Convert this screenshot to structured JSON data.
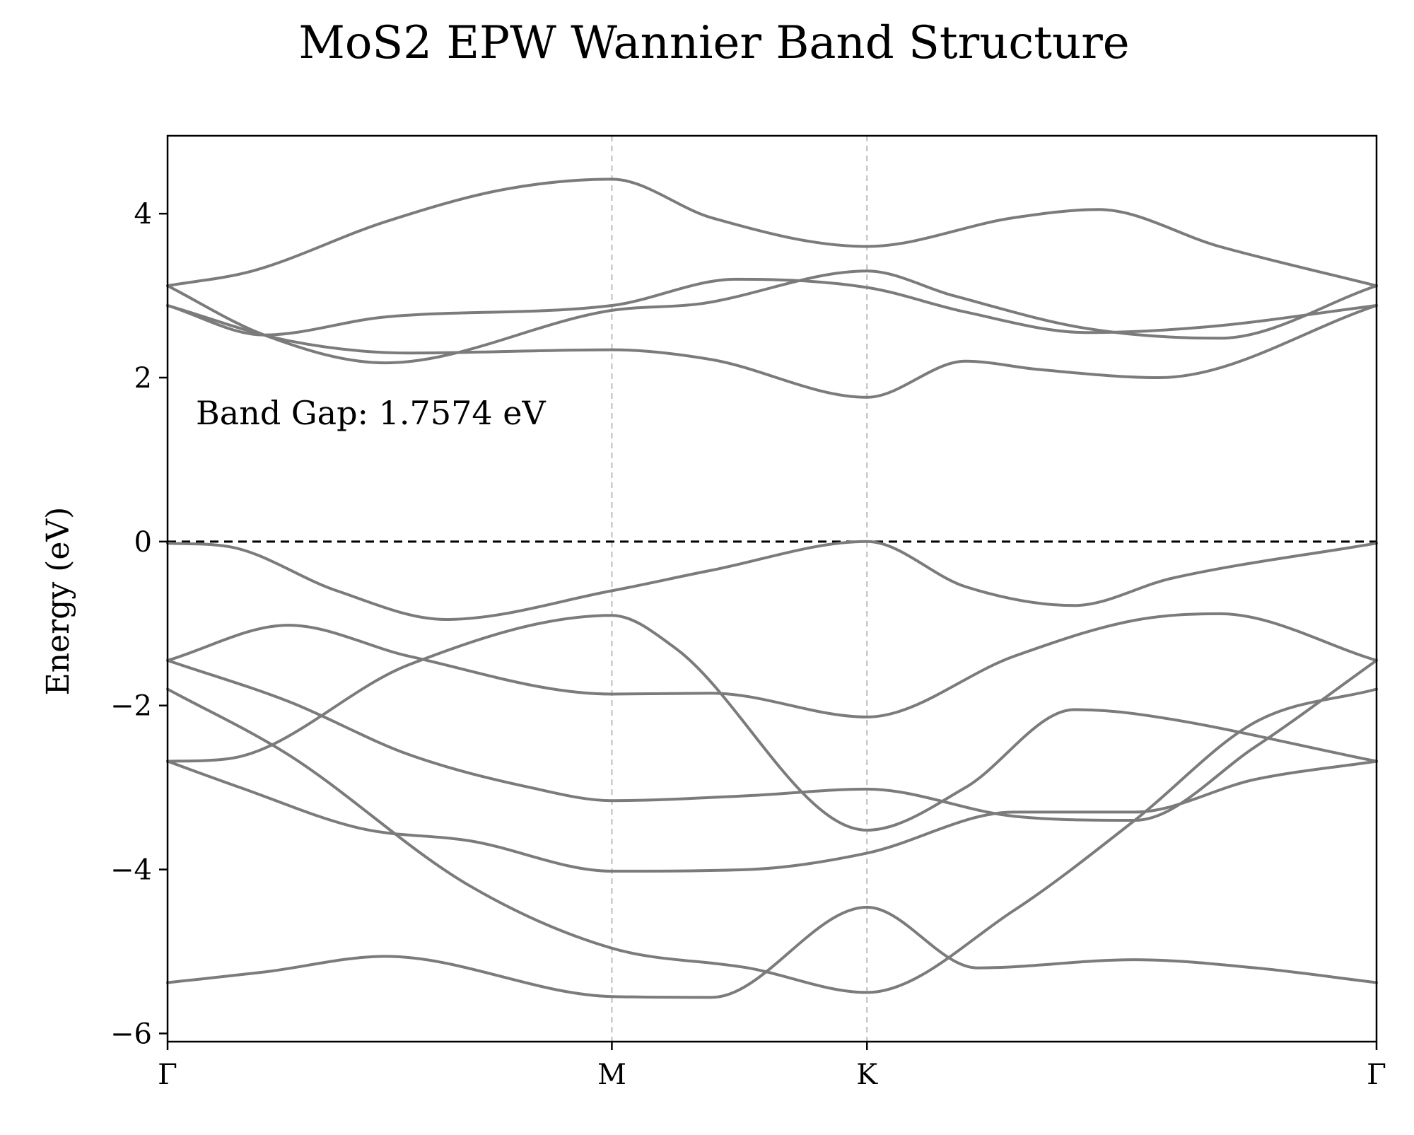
{
  "chart_data": {
    "type": "line",
    "title": "MoS2 EPW Wannier Band Structure",
    "xlabel": "",
    "ylabel": "Energy (eV)",
    "ylim": [
      -6.1,
      4.95
    ],
    "xlim": [
      0,
      1
    ],
    "x_ticks": [
      {
        "label": "Γ",
        "value": 0
      },
      {
        "label": "M",
        "value": 0.3675
      },
      {
        "label": "K",
        "value": 0.5785
      },
      {
        "label": "Γ",
        "value": 1
      }
    ],
    "y_ticks": [
      4,
      2,
      0,
      -2,
      -4,
      -6
    ],
    "y_tick_labels": [
      "4",
      "2",
      "0",
      "−2",
      "−4",
      "−6"
    ],
    "fermi_level": 0,
    "grid": false,
    "high_symmetry_lines": true,
    "line_color": "#7b7b7b",
    "fermi_color": "#000000",
    "vline_color": "#bdbdbd",
    "annotation": "Band Gap: 1.7574 eV",
    "series": [
      {
        "x": [
          0,
          0.08,
          0.18,
          0.3675,
          0.45,
          0.5785,
          0.67,
          0.8,
          0.9,
          1
        ],
        "values": [
          -5.38,
          -5.25,
          -5.06,
          -5.55,
          -5.56,
          -4.46,
          -5.2,
          -5.1,
          -5.2,
          -5.38
        ]
      },
      {
        "x": [
          0,
          0.1,
          0.25,
          0.3675,
          0.48,
          0.5785,
          0.7,
          0.8,
          0.9,
          1
        ],
        "values": [
          -1.8,
          -2.6,
          -4.2,
          -4.96,
          -5.2,
          -5.5,
          -4.5,
          -3.4,
          -2.2,
          -1.8
        ]
      },
      {
        "x": [
          0,
          0.06,
          0.16,
          0.25,
          0.3675,
          0.48,
          0.5785,
          0.7,
          0.8,
          0.9,
          1
        ],
        "values": [
          -2.68,
          -3.0,
          -3.5,
          -3.65,
          -4.02,
          -4.0,
          -3.8,
          -3.3,
          -3.3,
          -2.9,
          -2.68
        ]
      },
      {
        "x": [
          0,
          0.1,
          0.2,
          0.3,
          0.3675,
          0.48,
          0.5785,
          0.7,
          0.8,
          0.9,
          1
        ],
        "values": [
          -1.45,
          -1.95,
          -2.6,
          -3.0,
          -3.16,
          -3.1,
          -3.02,
          -3.35,
          -3.4,
          -2.5,
          -1.45
        ]
      },
      {
        "x": [
          0,
          0.05,
          0.2,
          0.3675,
          0.42,
          0.5785,
          0.66,
          0.75,
          0.8,
          1
        ],
        "values": [
          -2.68,
          -2.65,
          -1.5,
          -0.9,
          -1.3,
          -3.52,
          -3.0,
          -2.05,
          -2.1,
          -2.68
        ]
      },
      {
        "x": [
          0,
          0.1,
          0.2,
          0.3675,
          0.45,
          0.5785,
          0.7,
          0.8,
          0.87,
          1
        ],
        "values": [
          -1.45,
          -1.02,
          -1.4,
          -1.86,
          -1.85,
          -2.14,
          -1.4,
          -0.96,
          -0.88,
          -1.45
        ]
      },
      {
        "x": [
          0,
          0.05,
          0.14,
          0.23,
          0.3675,
          0.45,
          0.5785,
          0.66,
          0.75,
          0.83,
          1
        ],
        "values": [
          -0.02,
          -0.06,
          -0.6,
          -0.95,
          -0.6,
          -0.35,
          0,
          -0.55,
          -0.78,
          -0.45,
          -0.02
        ]
      },
      {
        "x": [
          0,
          0.1,
          0.2,
          0.3675,
          0.45,
          0.5785,
          0.66,
          0.72,
          0.82,
          1
        ],
        "values": [
          2.88,
          2.45,
          2.3,
          2.34,
          2.22,
          1.76,
          2.2,
          2.1,
          2.0,
          2.88
        ]
      },
      {
        "x": [
          0,
          0.08,
          0.18,
          0.3675,
          0.44,
          0.5785,
          0.65,
          0.76,
          0.87,
          1
        ],
        "values": [
          3.12,
          2.52,
          2.18,
          2.82,
          2.9,
          3.3,
          3.0,
          2.6,
          2.48,
          3.12
        ]
      },
      {
        "x": [
          0,
          0.08,
          0.18,
          0.3675,
          0.47,
          0.5785,
          0.66,
          0.76,
          0.86,
          1
        ],
        "values": [
          2.88,
          2.52,
          2.74,
          2.88,
          3.2,
          3.1,
          2.8,
          2.55,
          2.62,
          2.88
        ]
      },
      {
        "x": [
          0,
          0.07,
          0.18,
          0.28,
          0.3675,
          0.45,
          0.5785,
          0.7,
          0.77,
          0.87,
          1
        ],
        "values": [
          3.12,
          3.3,
          3.9,
          4.3,
          4.42,
          3.95,
          3.6,
          3.95,
          4.05,
          3.6,
          3.12
        ]
      }
    ]
  }
}
